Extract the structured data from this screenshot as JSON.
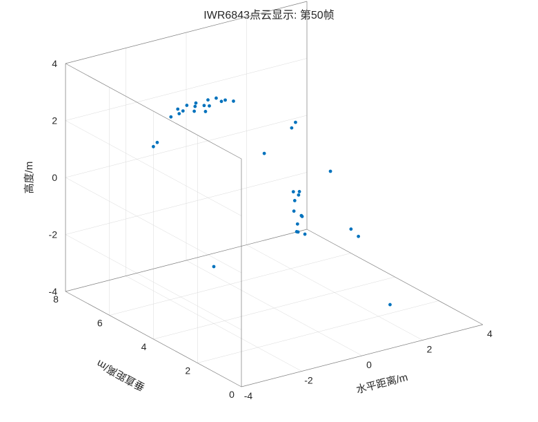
{
  "chart": {
    "type": "scatter3d",
    "title": "IWR6843点云显示: 第50帧",
    "title_fontsize": 16,
    "background_color": "#ffffff",
    "grid_color": "#d9d9d9",
    "axis_line_color": "#808080",
    "point_color": "#0072bd",
    "point_radius": 2.4,
    "x": {
      "label": "水平距离/m",
      "min": -4,
      "max": 4,
      "ticks": [
        -4,
        -2,
        0,
        2,
        4
      ]
    },
    "y": {
      "label": "垂直距离/m",
      "min": 0,
      "max": 8,
      "ticks": [
        0,
        2,
        4,
        6,
        8
      ]
    },
    "z": {
      "label": "高度/m",
      "min": -4,
      "max": 4,
      "ticks": [
        -4,
        -2,
        0,
        2,
        4
      ]
    },
    "label_fontsize": 15,
    "tick_fontsize": 14,
    "points": [
      [
        -1.6,
        6.5,
        2.1
      ],
      [
        -1.4,
        6.4,
        2.2
      ],
      [
        -1.3,
        6.6,
        2.25
      ],
      [
        -1.2,
        6.5,
        2.2
      ],
      [
        -1.0,
        6.6,
        2.3
      ],
      [
        -0.9,
        6.4,
        2.15
      ],
      [
        -0.8,
        6.5,
        2.25
      ],
      [
        -0.7,
        6.6,
        2.3
      ],
      [
        -0.6,
        6.3,
        2.1
      ],
      [
        -0.5,
        6.5,
        2.2
      ],
      [
        -0.4,
        6.4,
        2.2
      ],
      [
        -0.3,
        6.6,
        2.3
      ],
      [
        -0.1,
        6.5,
        2.35
      ],
      [
        0.0,
        6.4,
        2.25
      ],
      [
        0.2,
        6.5,
        2.2
      ],
      [
        0.4,
        6.4,
        2.15
      ],
      [
        -2.4,
        6.2,
        1.4
      ],
      [
        -2.2,
        6.3,
        1.45
      ],
      [
        0.4,
        5.0,
        0.9
      ],
      [
        1.8,
        5.5,
        1.4
      ],
      [
        1.6,
        5.4,
        1.3
      ],
      [
        1.0,
        4.5,
        -0.4
      ],
      [
        1.1,
        4.4,
        -0.5
      ],
      [
        0.9,
        4.3,
        -0.6
      ],
      [
        1.2,
        4.5,
        -0.45
      ],
      [
        0.8,
        4.2,
        -0.9
      ],
      [
        0.9,
        4.0,
        -1.0
      ],
      [
        1.0,
        4.1,
        -1.1
      ],
      [
        0.7,
        3.9,
        -1.2
      ],
      [
        0.6,
        3.8,
        -1.4
      ],
      [
        0.8,
        3.7,
        -1.5
      ],
      [
        0.5,
        3.6,
        -1.3
      ],
      [
        1.5,
        3.5,
        0.6
      ],
      [
        2.4,
        3.8,
        -1.8
      ],
      [
        2.5,
        3.6,
        -2.0
      ],
      [
        -2.0,
        4.0,
        -2.0
      ],
      [
        1.8,
        1.2,
        -3.2
      ]
    ]
  }
}
